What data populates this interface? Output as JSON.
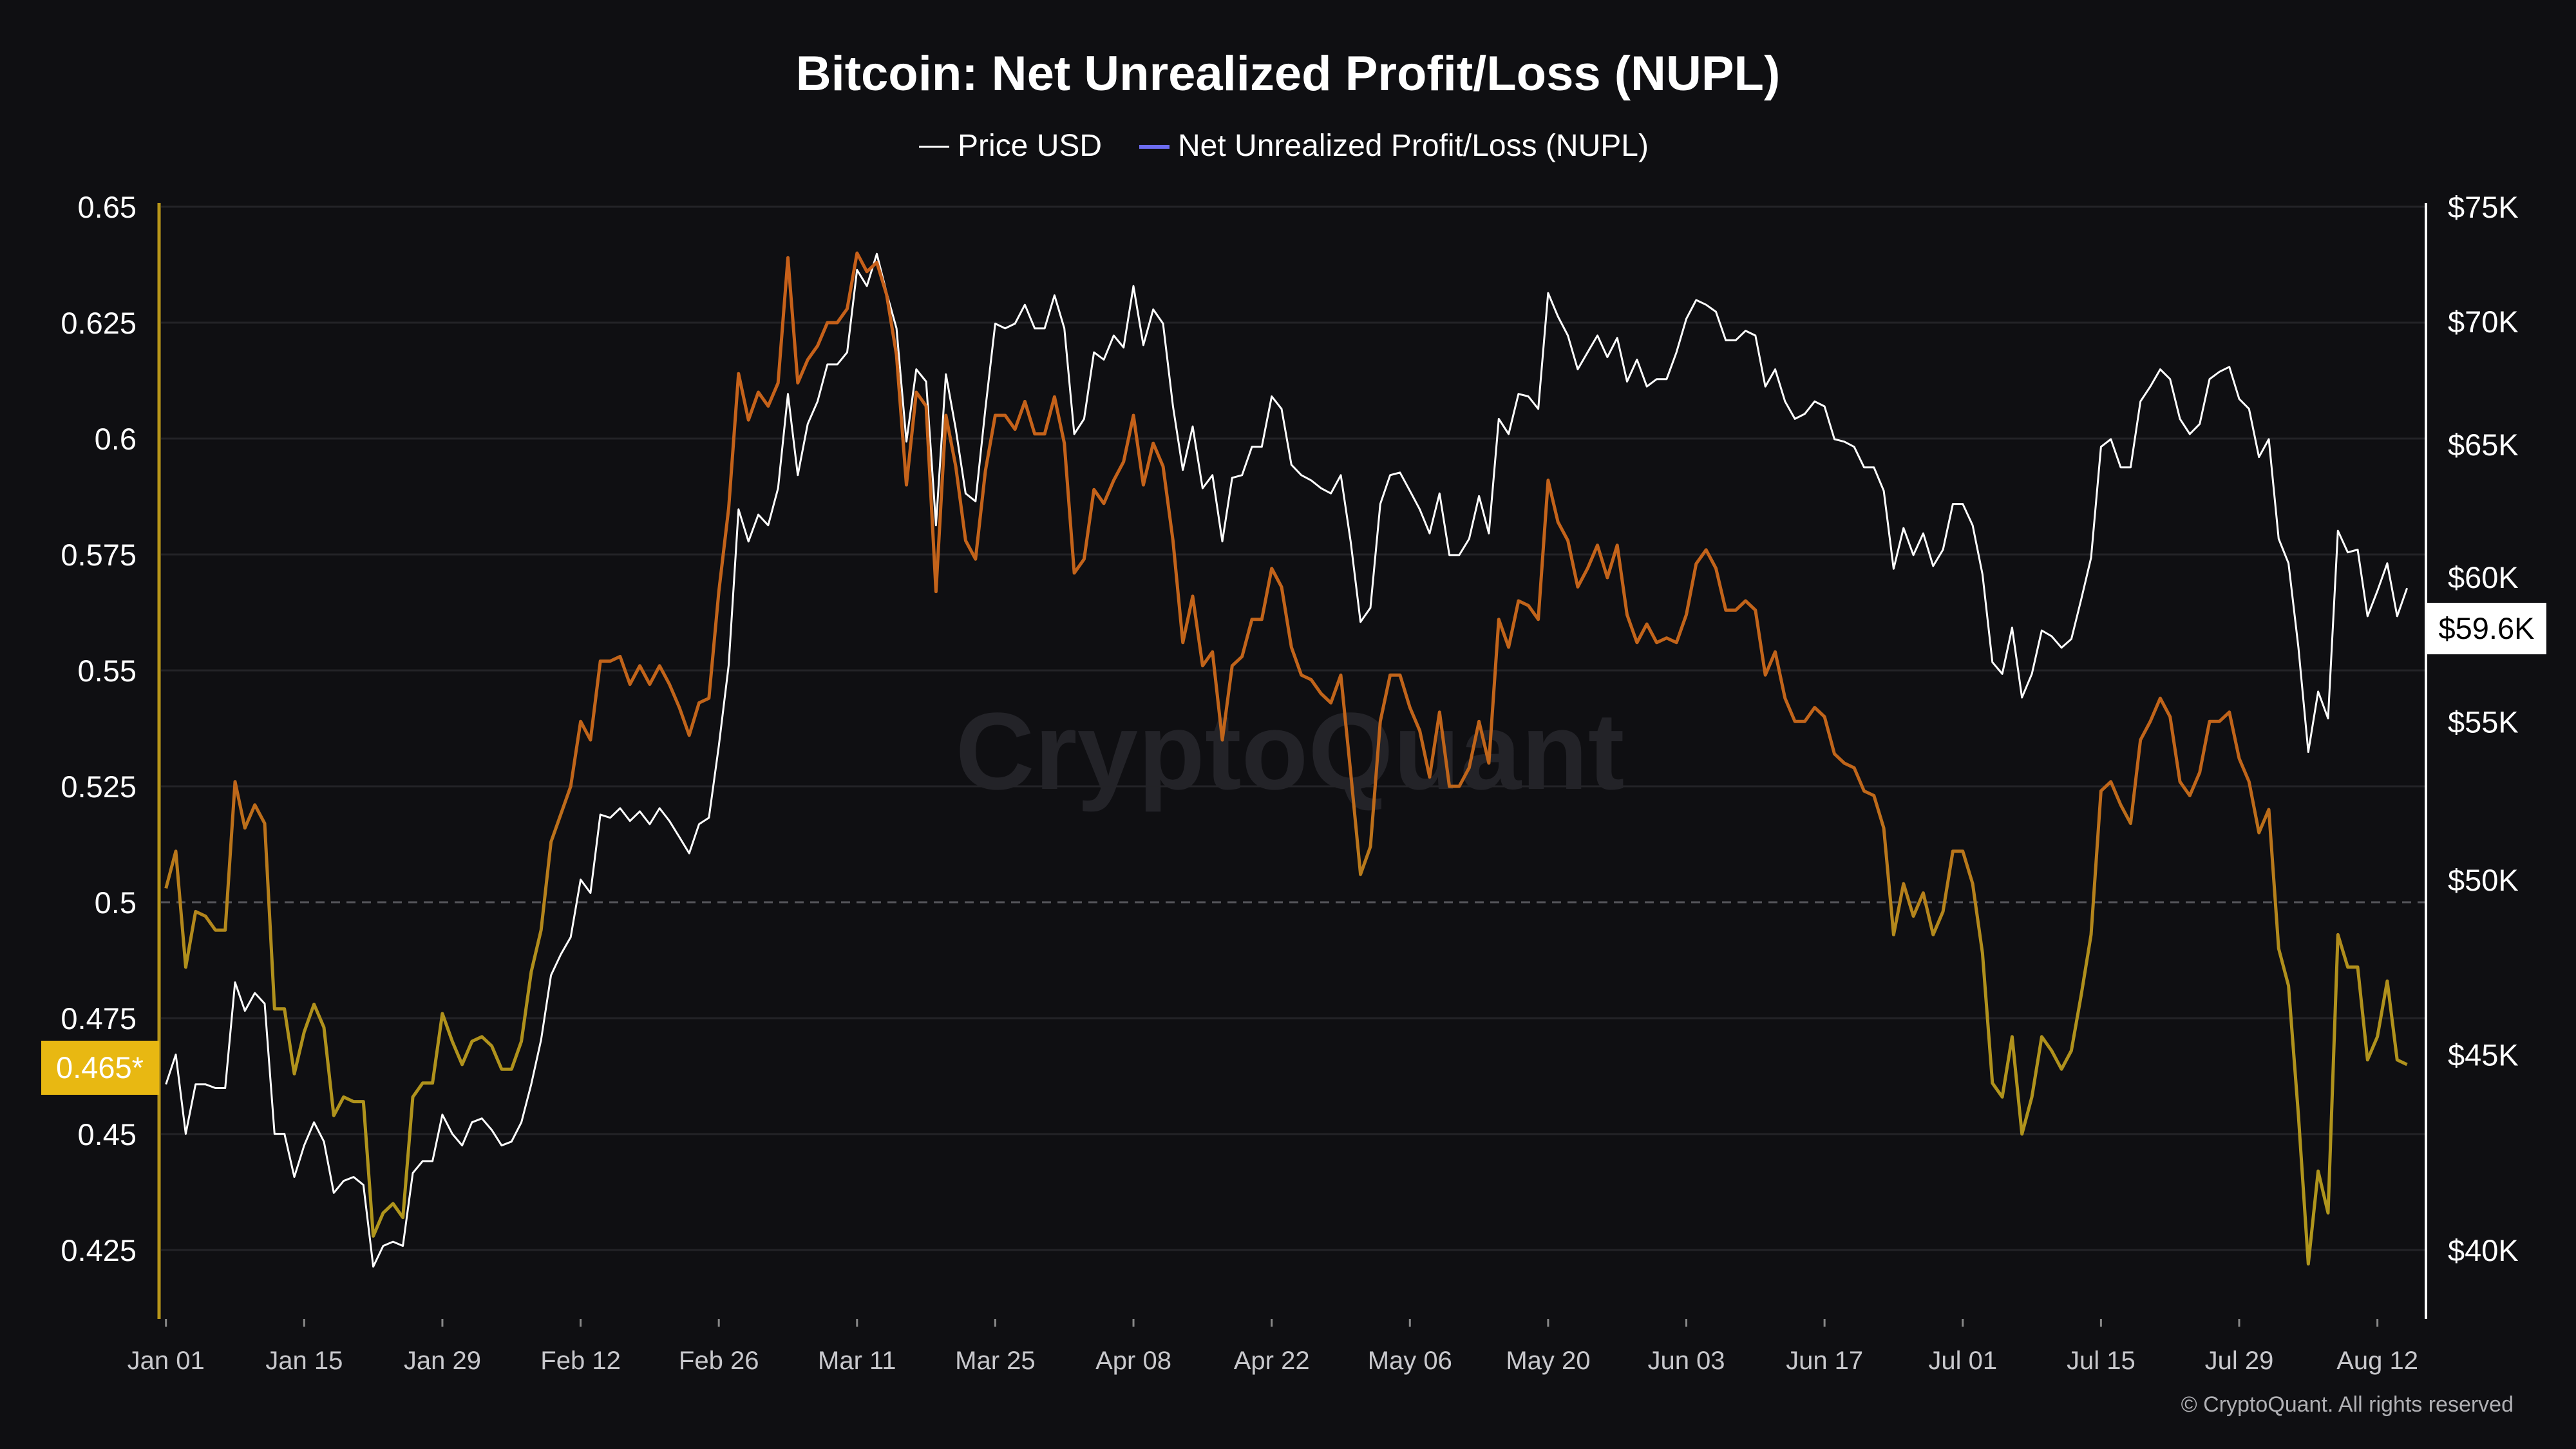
{
  "chart_data": {
    "type": "line",
    "title": "Bitcoin: Net Unrealized Profit/Loss (NUPL)",
    "watermark": "CryptoQuant",
    "copyright": "© CryptoQuant. All rights reserved",
    "legend_position": "top-center",
    "colors": {
      "price": "#ffffff",
      "nupl_legend": "#6c6cf0",
      "nupl_high": "#c8601a",
      "nupl_low": "#b0961c",
      "left_axis": "#b8961a",
      "current_badge": "#e8b812",
      "grid": "#232327"
    },
    "x_start": "Jan 01",
    "x_ticks": [
      {
        "label": "Jan 01",
        "day": 0
      },
      {
        "label": "Jan 15",
        "day": 14
      },
      {
        "label": "Jan 29",
        "day": 28
      },
      {
        "label": "Feb 12",
        "day": 42
      },
      {
        "label": "Feb 26",
        "day": 56
      },
      {
        "label": "Mar 11",
        "day": 70
      },
      {
        "label": "Mar 25",
        "day": 84
      },
      {
        "label": "Apr 08",
        "day": 98
      },
      {
        "label": "Apr 22",
        "day": 112
      },
      {
        "label": "May 06",
        "day": 126
      },
      {
        "label": "May 20",
        "day": 140
      },
      {
        "label": "Jun 03",
        "day": 154
      },
      {
        "label": "Jun 17",
        "day": 168
      },
      {
        "label": "Jul 01",
        "day": 182
      },
      {
        "label": "Jul 15",
        "day": 196
      },
      {
        "label": "Jul 29",
        "day": 210
      },
      {
        "label": "Aug 12",
        "day": 224
      }
    ],
    "y_left": {
      "range": [
        0.425,
        0.65
      ],
      "scale": "linear",
      "reference_line": 0.5,
      "ticks": [
        {
          "label": "0.65",
          "v": 0.65
        },
        {
          "label": "0.625",
          "v": 0.625
        },
        {
          "label": "0.6",
          "v": 0.6
        },
        {
          "label": "0.575",
          "v": 0.575
        },
        {
          "label": "0.55",
          "v": 0.55
        },
        {
          "label": "0.525",
          "v": 0.525
        },
        {
          "label": "0.5",
          "v": 0.5
        },
        {
          "label": "0.475",
          "v": 0.475
        },
        {
          "label": "0.45",
          "v": 0.45
        },
        {
          "label": "0.425",
          "v": 0.425
        }
      ],
      "current": {
        "label": "0.465*",
        "v": 0.465
      }
    },
    "y_right": {
      "range": [
        40000,
        75000
      ],
      "scale": "log",
      "ticks": [
        {
          "label": "$75K",
          "v": 75000
        },
        {
          "label": "$70K",
          "v": 70000
        },
        {
          "label": "$65K",
          "v": 65000
        },
        {
          "label": "$60K",
          "v": 60000
        },
        {
          "label": "$55K",
          "v": 55000
        },
        {
          "label": "$50K",
          "v": 50000
        },
        {
          "label": "$45K",
          "v": 45000
        },
        {
          "label": "$40K",
          "v": 40000
        }
      ],
      "current": {
        "label": "$59.6K",
        "v": 59600
      }
    },
    "series": [
      {
        "name": "Price USD",
        "axis": "right",
        "values": [
          44200,
          45000,
          42900,
          44200,
          44200,
          44100,
          44100,
          47000,
          46200,
          46700,
          46400,
          42900,
          42900,
          41800,
          42600,
          43200,
          42700,
          41400,
          41700,
          41800,
          41600,
          39600,
          40100,
          40200,
          40100,
          41900,
          42200,
          42200,
          43400,
          42900,
          42600,
          43200,
          43300,
          43000,
          42600,
          42700,
          43200,
          44200,
          45400,
          47200,
          47800,
          48300,
          50000,
          49600,
          52000,
          51900,
          52200,
          51800,
          52100,
          51700,
          52200,
          51800,
          51300,
          50800,
          51700,
          51900,
          54200,
          56900,
          62500,
          61300,
          62300,
          61900,
          63300,
          67000,
          63800,
          65800,
          66700,
          68200,
          68200,
          68700,
          72200,
          71500,
          72900,
          71200,
          69700,
          65100,
          68000,
          67500,
          61900,
          67800,
          65600,
          63100,
          62800,
          66400,
          69900,
          69700,
          69900,
          70700,
          69700,
          69700,
          71100,
          69700,
          65400,
          66000,
          68700,
          68400,
          69400,
          68900,
          71500,
          69000,
          70500,
          69900,
          66500,
          64000,
          65700,
          63300,
          63800,
          61300,
          63700,
          63800,
          64900,
          64900,
          66900,
          66400,
          64200,
          63800,
          63600,
          63300,
          63100,
          63800,
          61300,
          58400,
          58900,
          62700,
          63800,
          63900,
          63200,
          62500,
          61600,
          63100,
          60800,
          60800,
          61400,
          63000,
          61600,
          66000,
          65400,
          67000,
          66900,
          66400,
          71200,
          70200,
          69400,
          68000,
          68700,
          69400,
          68500,
          69300,
          67500,
          68400,
          67300,
          67600,
          67600,
          68700,
          70100,
          70900,
          70700,
          70400,
          69200,
          69200,
          69600,
          69400,
          67300,
          68000,
          66700,
          66000,
          66200,
          66700,
          66500,
          65200,
          65100,
          64900,
          64100,
          64100,
          63200,
          60300,
          61800,
          60800,
          61600,
          60400,
          61000,
          62700,
          62700,
          61900,
          60100,
          57000,
          56600,
          58200,
          55800,
          56600,
          58100,
          57900,
          57500,
          57800,
          59200,
          60700,
          64900,
          65200,
          64100,
          64100,
          66700,
          67300,
          68000,
          67600,
          66000,
          65400,
          65800,
          67600,
          67900,
          68100,
          66800,
          66400,
          64500,
          65200,
          61400,
          60500,
          57500,
          54000,
          56000,
          55100,
          61700,
          60900,
          61000,
          58600,
          59500,
          60500,
          58600,
          59600
        ]
      },
      {
        "name": "Net Unrealized Profit/Loss (NUPL)",
        "axis": "left",
        "values": [
          0.503,
          0.511,
          0.486,
          0.498,
          0.497,
          0.494,
          0.494,
          0.526,
          0.516,
          0.521,
          0.517,
          0.477,
          0.477,
          0.463,
          0.472,
          0.478,
          0.473,
          0.454,
          0.458,
          0.457,
          0.457,
          0.428,
          0.433,
          0.435,
          0.432,
          0.458,
          0.461,
          0.461,
          0.476,
          0.47,
          0.465,
          0.47,
          0.471,
          0.469,
          0.464,
          0.464,
          0.47,
          0.485,
          0.494,
          0.513,
          0.519,
          0.525,
          0.539,
          0.535,
          0.552,
          0.552,
          0.553,
          0.547,
          0.551,
          0.547,
          0.551,
          0.547,
          0.542,
          0.536,
          0.543,
          0.544,
          0.567,
          0.585,
          0.614,
          0.604,
          0.61,
          0.607,
          0.612,
          0.639,
          0.612,
          0.617,
          0.62,
          0.625,
          0.625,
          0.628,
          0.64,
          0.636,
          0.638,
          0.631,
          0.618,
          0.59,
          0.61,
          0.607,
          0.567,
          0.605,
          0.594,
          0.578,
          0.574,
          0.593,
          0.605,
          0.605,
          0.602,
          0.608,
          0.601,
          0.601,
          0.609,
          0.599,
          0.571,
          0.574,
          0.589,
          0.586,
          0.591,
          0.595,
          0.605,
          0.59,
          0.599,
          0.594,
          0.578,
          0.556,
          0.566,
          0.551,
          0.554,
          0.535,
          0.551,
          0.553,
          0.561,
          0.561,
          0.572,
          0.568,
          0.555,
          0.549,
          0.548,
          0.545,
          0.543,
          0.549,
          0.528,
          0.506,
          0.512,
          0.539,
          0.549,
          0.549,
          0.542,
          0.537,
          0.527,
          0.541,
          0.525,
          0.525,
          0.529,
          0.539,
          0.53,
          0.561,
          0.555,
          0.565,
          0.564,
          0.561,
          0.591,
          0.582,
          0.578,
          0.568,
          0.572,
          0.577,
          0.57,
          0.577,
          0.562,
          0.556,
          0.56,
          0.556,
          0.557,
          0.556,
          0.562,
          0.573,
          0.576,
          0.572,
          0.563,
          0.563,
          0.565,
          0.563,
          0.549,
          0.554,
          0.544,
          0.539,
          0.539,
          0.542,
          0.54,
          0.532,
          0.53,
          0.529,
          0.524,
          0.523,
          0.516,
          0.493,
          0.504,
          0.497,
          0.502,
          0.493,
          0.498,
          0.511,
          0.511,
          0.504,
          0.489,
          0.461,
          0.458,
          0.471,
          0.45,
          0.458,
          0.471,
          0.468,
          0.464,
          0.468,
          0.48,
          0.493,
          0.524,
          0.526,
          0.521,
          0.517,
          0.535,
          0.539,
          0.544,
          0.54,
          0.526,
          0.523,
          0.528,
          0.539,
          0.539,
          0.541,
          0.531,
          0.526,
          0.515,
          0.52,
          0.49,
          0.482,
          0.454,
          0.422,
          0.442,
          0.433,
          0.493,
          0.486,
          0.486,
          0.466,
          0.471,
          0.483,
          0.466,
          0.465
        ]
      }
    ]
  }
}
